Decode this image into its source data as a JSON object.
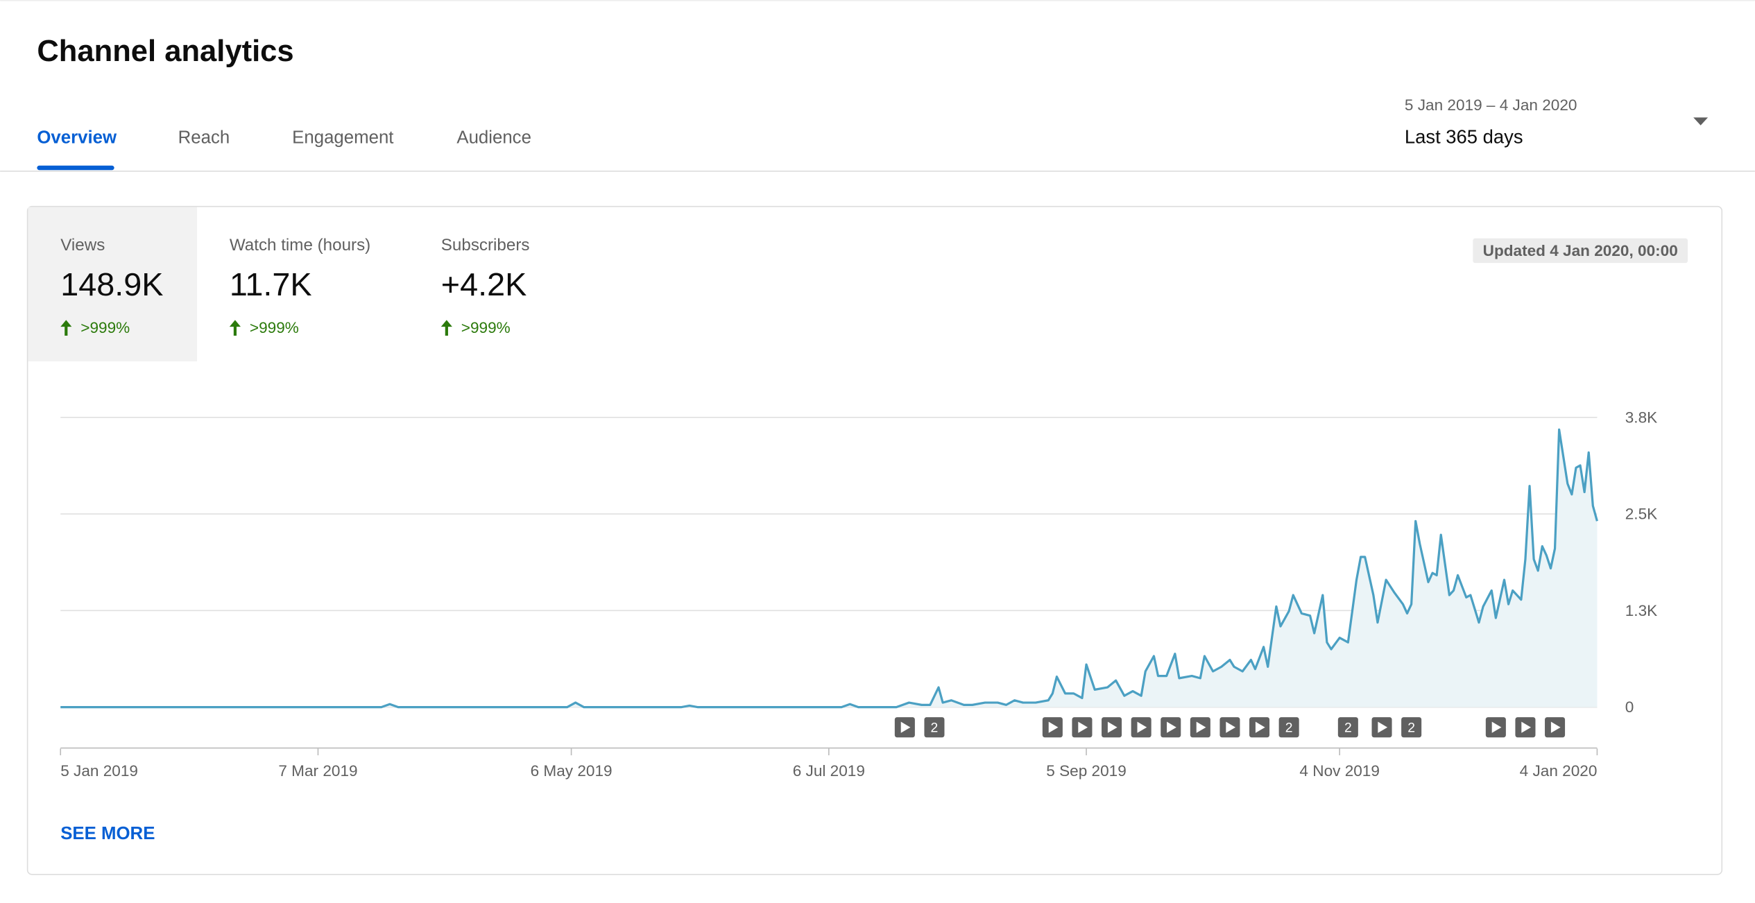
{
  "header": {
    "title": "Channel analytics"
  },
  "tabs": [
    "Overview",
    "Reach",
    "Engagement",
    "Audience"
  ],
  "date_range": {
    "range": "5 Jan 2019 – 4 Jan 2020",
    "label": "Last 365 days"
  },
  "metrics": [
    {
      "name": "Views",
      "value": "148.9K",
      "change": ">999%"
    },
    {
      "name": "Watch time (hours)",
      "value": "11.7K",
      "change": ">999%"
    },
    {
      "name": "Subscribers",
      "value": "+4.2K",
      "change": ">999%"
    }
  ],
  "updated": "Updated 4 Jan 2020, 00:00",
  "see_more": "SEE MORE",
  "chart_data": {
    "type": "line",
    "x": [
      "5 Jan 2019",
      "22 Mar 2019",
      "24 Mar 2019",
      "26 Mar 2019",
      "5 May 2019",
      "7 May 2019",
      "9 May 2019",
      "1 Jun 2019",
      "3 Jun 2019",
      "5 Jun 2019",
      "9 Jul 2019",
      "11 Jul 2019",
      "13 Jul 2019",
      "22 Jul 2019",
      "25 Jul 2019",
      "28 Jul 2019",
      "30 Jul 2019",
      "1 Aug 2019",
      "2 Aug 2019",
      "4 Aug 2019",
      "7 Aug 2019",
      "9 Aug 2019",
      "12 Aug 2019",
      "15 Aug 2019",
      "17 Aug 2019",
      "19 Aug 2019",
      "21 Aug 2019",
      "24 Aug 2019",
      "27 Aug 2019",
      "28 Aug 2019",
      "29 Aug 2019",
      "31 Aug 2019",
      "2 Sep 2019",
      "4 Sep 2019",
      "5 Sep 2019",
      "7 Sep 2019",
      "10 Sep 2019",
      "12 Sep 2019",
      "14 Sep 2019",
      "16 Sep 2019",
      "18 Sep 2019",
      "19 Sep 2019",
      "21 Sep 2019",
      "22 Sep 2019",
      "24 Sep 2019",
      "26 Sep 2019",
      "27 Sep 2019",
      "30 Sep 2019",
      "2 Oct 2019",
      "3 Oct 2019",
      "5 Oct 2019",
      "7 Oct 2019",
      "9 Oct 2019",
      "10 Oct 2019",
      "12 Oct 2019",
      "14 Oct 2019",
      "15 Oct 2019",
      "17 Oct 2019",
      "18 Oct 2019",
      "20 Oct 2019",
      "21 Oct 2019",
      "23 Oct 2019",
      "24 Oct 2019",
      "26 Oct 2019",
      "28 Oct 2019",
      "29 Oct 2019",
      "31 Oct 2019",
      "1 Nov 2019",
      "2 Nov 2019",
      "4 Nov 2019",
      "6 Nov 2019",
      "8 Nov 2019",
      "9 Nov 2019",
      "10 Nov 2019",
      "12 Nov 2019",
      "13 Nov 2019",
      "15 Nov 2019",
      "17 Nov 2019",
      "19 Nov 2019",
      "20 Nov 2019",
      "21 Nov 2019",
      "22 Nov 2019",
      "23 Nov 2019",
      "25 Nov 2019",
      "26 Nov 2019",
      "27 Nov 2019",
      "28 Nov 2019",
      "30 Nov 2019",
      "1 Dec 2019",
      "2 Dec 2019",
      "4 Dec 2019",
      "5 Dec 2019",
      "7 Dec 2019",
      "8 Dec 2019",
      "10 Dec 2019",
      "11 Dec 2019",
      "13 Dec 2019",
      "14 Dec 2019",
      "15 Dec 2019",
      "17 Dec 2019",
      "18 Dec 2019",
      "19 Dec 2019",
      "20 Dec 2019",
      "21 Dec 2019",
      "22 Dec 2019",
      "23 Dec 2019",
      "24 Dec 2019",
      "25 Dec 2019",
      "26 Dec 2019",
      "28 Dec 2019",
      "29 Dec 2019",
      "30 Dec 2019",
      "31 Dec 2019",
      "1 Jan 2020",
      "2 Jan 2020",
      "3 Jan 2020",
      "4 Jan 2020"
    ],
    "series": [
      {
        "color": "#4ba0c3",
        "fill": "#ebf4f7",
        "values": [
          0,
          0,
          40,
          0,
          0,
          60,
          0,
          0,
          20,
          0,
          0,
          40,
          0,
          0,
          60,
          30,
          30,
          260,
          60,
          90,
          30,
          30,
          60,
          60,
          30,
          90,
          60,
          60,
          90,
          180,
          400,
          180,
          180,
          120,
          560,
          230,
          260,
          350,
          150,
          210,
          150,
          470,
          670,
          410,
          410,
          700,
          380,
          410,
          380,
          670,
          470,
          530,
          620,
          530,
          470,
          620,
          500,
          790,
          530,
          1320,
          1060,
          1260,
          1470,
          1230,
          1200,
          970,
          1470,
          850,
          760,
          910,
          850,
          1670,
          1970,
          1970,
          1470,
          1110,
          1670,
          1500,
          1350,
          1230,
          1350,
          2440,
          2140,
          1640,
          1760,
          1730,
          2260,
          1470,
          1530,
          1730,
          1440,
          1470,
          1110,
          1320,
          1530,
          1170,
          1670,
          1350,
          1530,
          1410,
          1940,
          2900,
          1940,
          1790,
          2110,
          1990,
          1820,
          2080,
          3640,
          2930,
          2790,
          3140,
          3170,
          2820,
          3340,
          2640,
          2440
        ]
      }
    ],
    "xlim": [
      "5 Jan 2019",
      "4 Jan 2020"
    ],
    "xticks": [
      "5 Jan 2019",
      "7 Mar 2019",
      "6 May 2019",
      "6 Jul 2019",
      "5 Sep 2019",
      "4 Nov 2019",
      "4 Jan 2020"
    ],
    "ylim": [
      0,
      3800
    ],
    "yticks": [
      0,
      {
        "value": 1267,
        "label": "1.3K"
      },
      {
        "value": 2533,
        "label": "2.5K"
      },
      {
        "value": 3800,
        "label": "3.8K"
      }
    ],
    "grid": true,
    "video_markers": [
      {
        "x": "24 Jul 2019"
      },
      {
        "x": "31 Jul 2019",
        "label": "2"
      },
      {
        "x": "28 Aug 2019"
      },
      {
        "x": "4 Sep 2019"
      },
      {
        "x": "11 Sep 2019"
      },
      {
        "x": "18 Sep 2019"
      },
      {
        "x": "25 Sep 2019"
      },
      {
        "x": "2 Oct 2019"
      },
      {
        "x": "9 Oct 2019"
      },
      {
        "x": "16 Oct 2019"
      },
      {
        "x": "23 Oct 2019",
        "label": "2"
      },
      {
        "x": "6 Nov 2019",
        "label": "2"
      },
      {
        "x": "14 Nov 2019"
      },
      {
        "x": "21 Nov 2019",
        "label": "2"
      },
      {
        "x": "11 Dec 2019"
      },
      {
        "x": "18 Dec 2019"
      },
      {
        "x": "25 Dec 2019"
      }
    ]
  }
}
